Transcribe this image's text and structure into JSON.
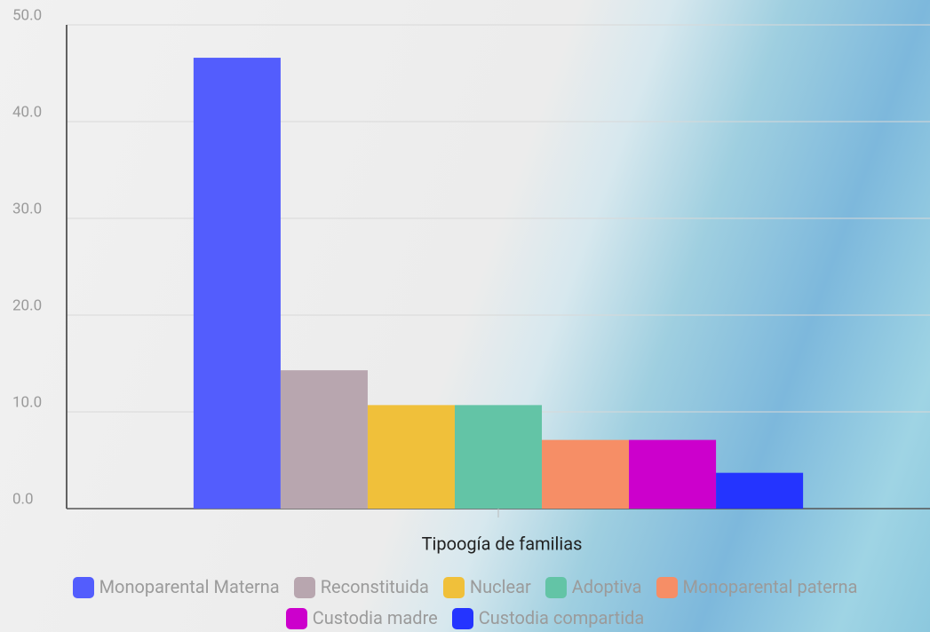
{
  "chart_data": {
    "type": "bar",
    "x_label": "Tipoogía de familias",
    "categories": [
      null
    ],
    "series": [
      {
        "name": "Monoparental Materna",
        "color": "#535dfd",
        "values": [
          46.6
        ]
      },
      {
        "name": "Reconstituida",
        "color": "#b8a6af",
        "values": [
          14.3
        ]
      },
      {
        "name": "Nuclear",
        "color": "#f0c03a",
        "values": [
          10.7
        ]
      },
      {
        "name": "Adoptiva",
        "color": "#63c4a6",
        "values": [
          10.7
        ]
      },
      {
        "name": "Monoparental paterna",
        "color": "#f68e66",
        "values": [
          7.1
        ]
      },
      {
        "name": "Custodia madre",
        "color": "#cc00cc",
        "values": [
          7.1
        ]
      },
      {
        "name": "Custodia compartida",
        "color": "#2434ff",
        "values": [
          3.7
        ]
      }
    ],
    "ylim": [
      0,
      50
    ],
    "yticks": [
      {
        "value": 0,
        "label": "0.0"
      },
      {
        "value": 10,
        "label": "10.0"
      },
      {
        "value": 20,
        "label": "20.0"
      },
      {
        "value": 30,
        "label": "30.0"
      },
      {
        "value": 40,
        "label": "40.0"
      },
      {
        "value": 50,
        "label": "50.0"
      }
    ],
    "grid": true
  }
}
